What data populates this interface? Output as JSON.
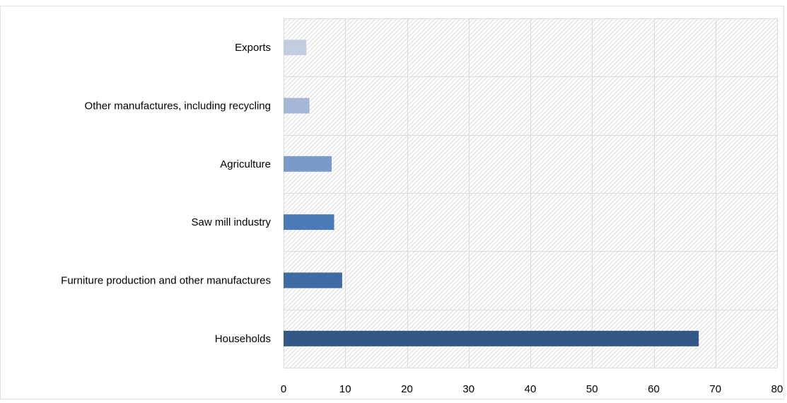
{
  "chart_data": {
    "type": "bar",
    "orientation": "horizontal",
    "categories": [
      "Exports",
      "Other manufactures, including recycling",
      "Agriculture",
      "Saw mill industry",
      "Furniture production and other manufactures",
      "Households"
    ],
    "values": [
      3.7,
      4.2,
      7.8,
      8.2,
      9.5,
      67.3
    ],
    "bar_colors": [
      "#c3cde1",
      "#a6b7d5",
      "#7a9bc9",
      "#4a7ab8",
      "#3f6aa3",
      "#345886"
    ],
    "xlim": [
      0,
      80
    ],
    "xticks": [
      0,
      10,
      20,
      30,
      40,
      50,
      60,
      70,
      80
    ],
    "grid": true,
    "background_pattern": "diagonal-hatch",
    "title": "",
    "xlabel": "",
    "ylabel": ""
  }
}
